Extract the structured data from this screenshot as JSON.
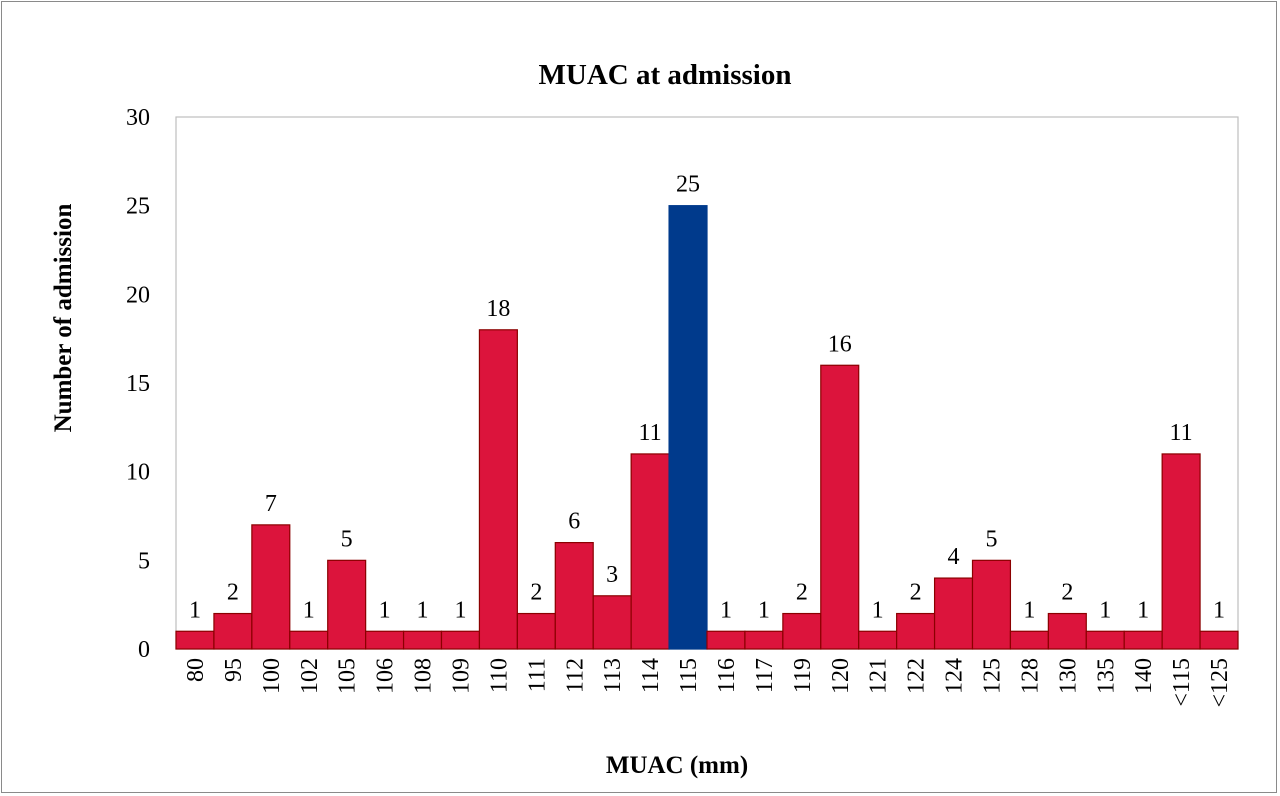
{
  "chart_data": {
    "type": "bar",
    "title": "MUAC at admission",
    "xlabel": "MUAC (mm)",
    "ylabel": "Number of admission",
    "ylim": [
      0,
      30
    ],
    "yticks": [
      0,
      5,
      10,
      15,
      20,
      25,
      30
    ],
    "categories": [
      "80",
      "95",
      "100",
      "102",
      "105",
      "106",
      "108",
      "109",
      "110",
      "111",
      "112",
      "113",
      "114",
      "115",
      "116",
      "117",
      "119",
      "120",
      "121",
      "122",
      "124",
      "125",
      "128",
      "130",
      "135",
      "140",
      "<115",
      "<125"
    ],
    "values": [
      1,
      2,
      7,
      1,
      5,
      1,
      1,
      1,
      18,
      2,
      6,
      3,
      11,
      25,
      1,
      1,
      2,
      16,
      1,
      2,
      4,
      5,
      1,
      2,
      1,
      1,
      11,
      1
    ],
    "highlight_category": "115",
    "colors": {
      "bar": "#DC143C",
      "highlight": "#003A8C",
      "bar_border": "#8B0000"
    },
    "grid": false,
    "legend": "none",
    "data_labels": true
  }
}
